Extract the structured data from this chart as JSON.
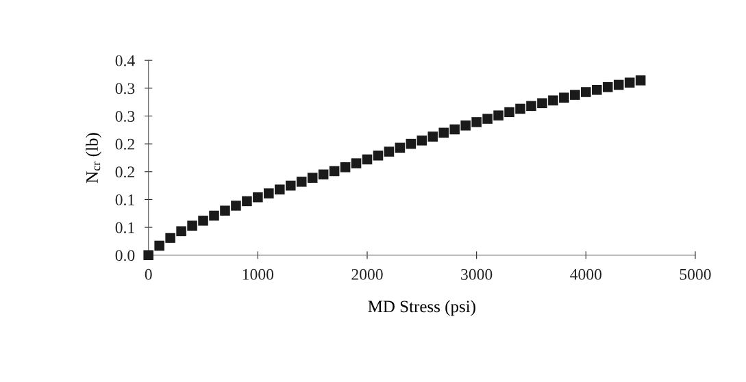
{
  "chart_data": {
    "type": "scatter",
    "xlabel": "MD Stress (psi)",
    "ylabel": "N$_{cr}$ (lb)",
    "x": [
      0,
      100,
      200,
      300,
      400,
      500,
      600,
      700,
      800,
      900,
      1000,
      1100,
      1200,
      1300,
      1400,
      1500,
      1600,
      1700,
      1800,
      1900,
      2000,
      2100,
      2200,
      2300,
      2400,
      2500,
      2600,
      2700,
      2800,
      2900,
      3000,
      3100,
      3200,
      3300,
      3400,
      3500,
      3600,
      3700,
      3800,
      3900,
      4000,
      4100,
      4200,
      4300,
      4400,
      4500
    ],
    "series": [
      {
        "color": "#1a1a1a",
        "values": [
          0,
          0.017,
          0.031,
          0.043,
          0.053,
          0.062,
          0.071,
          0.08,
          0.089,
          0.097,
          0.104,
          0.111,
          0.118,
          0.125,
          0.132,
          0.139,
          0.145,
          0.151,
          0.158,
          0.165,
          0.172,
          0.179,
          0.186,
          0.193,
          0.2,
          0.206,
          0.213,
          0.22,
          0.226,
          0.233,
          0.239,
          0.245,
          0.251,
          0.257,
          0.263,
          0.268,
          0.273,
          0.278,
          0.283,
          0.288,
          0.293,
          0.297,
          0.302,
          0.306,
          0.31,
          0.314
        ]
      }
    ],
    "xlim": [
      0,
      5000
    ],
    "xticks": [
      0,
      1000,
      2000,
      3000,
      4000,
      5000
    ],
    "ylim": [
      0,
      0.35
    ],
    "yticks": [
      {
        "value": 0,
        "label": "0.0"
      },
      {
        "value": 0.05,
        "label": "0.1"
      },
      {
        "value": 0.1,
        "label": "0.1"
      },
      {
        "value": 0.15,
        "label": "0.2"
      },
      {
        "value": 0.2,
        "label": "0.2"
      },
      {
        "value": 0.25,
        "label": "0.3"
      },
      {
        "value": 0.3,
        "label": "0.3"
      },
      {
        "value": 0.35,
        "label": "0.4"
      }
    ],
    "marker": "square"
  }
}
